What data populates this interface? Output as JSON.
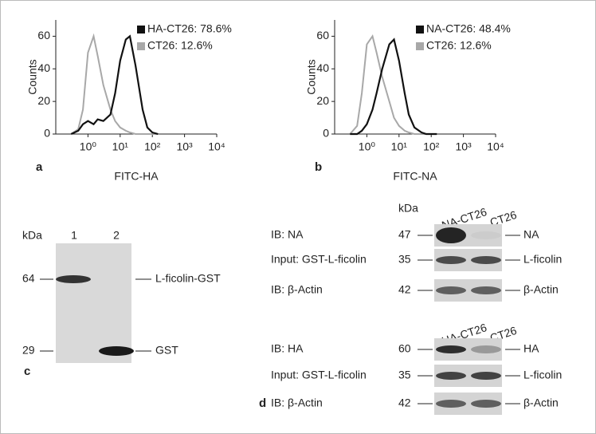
{
  "chart_data": [
    {
      "type": "line",
      "panel": "a",
      "x_label": "FITC-HA",
      "y_label": "Counts",
      "xlog": true,
      "x": [
        0.3,
        0.5,
        0.7,
        1,
        1.5,
        2,
        3,
        5,
        7,
        10,
        15,
        20,
        30,
        50,
        70,
        100,
        150
      ],
      "series": [
        {
          "name": "HA-CT26: 78.6%",
          "color": "#111111",
          "values": [
            0,
            2,
            6,
            8,
            6,
            9,
            8,
            12,
            25,
            45,
            58,
            60,
            42,
            15,
            4,
            1,
            0
          ]
        },
        {
          "name": "CT26: 12.6%",
          "color": "#a8a8a8",
          "values": [
            0,
            3,
            15,
            50,
            60,
            48,
            30,
            15,
            8,
            4,
            2,
            1,
            0,
            0,
            0,
            0,
            0
          ]
        }
      ],
      "xlim": [
        0.1,
        10000
      ],
      "xticks": [
        {
          "value": 1,
          "label": "10⁰"
        },
        {
          "value": 10,
          "label": "10¹"
        },
        {
          "value": 100,
          "label": "10²"
        },
        {
          "value": 1000,
          "label": "10³"
        },
        {
          "value": 10000,
          "label": "10⁴"
        }
      ],
      "ylim": [
        0,
        70
      ],
      "yticks": [
        0,
        20,
        40,
        60
      ],
      "legend": "upper right"
    },
    {
      "type": "line",
      "panel": "b",
      "x_label": "FITC-NA",
      "y_label": "Counts",
      "xlog": true,
      "x": [
        0.3,
        0.5,
        0.7,
        1,
        1.5,
        2,
        3,
        5,
        7,
        10,
        15,
        20,
        30,
        50,
        70,
        100,
        150
      ],
      "series": [
        {
          "name": "NA-CT26: 48.4%",
          "color": "#111111",
          "values": [
            0,
            0,
            2,
            6,
            15,
            25,
            40,
            55,
            58,
            45,
            25,
            12,
            4,
            1,
            0,
            0,
            0
          ]
        },
        {
          "name": "CT26: 12.6%",
          "color": "#a8a8a8",
          "values": [
            0,
            5,
            25,
            55,
            60,
            50,
            35,
            20,
            10,
            5,
            2,
            1,
            0,
            0,
            0,
            0,
            0
          ]
        }
      ],
      "xlim": [
        0.1,
        10000
      ],
      "xticks": [
        {
          "value": 1,
          "label": "10⁰"
        },
        {
          "value": 10,
          "label": "10¹"
        },
        {
          "value": 100,
          "label": "10²"
        },
        {
          "value": 1000,
          "label": "10³"
        },
        {
          "value": 10000,
          "label": "10⁴"
        }
      ],
      "ylim": [
        0,
        70
      ],
      "yticks": [
        0,
        20,
        40,
        60
      ],
      "legend": "upper right"
    }
  ],
  "blot_c": {
    "panel": "c",
    "kda": "kDa",
    "lanes": [
      "1",
      "2"
    ],
    "markers": [
      64,
      29
    ],
    "bands": [
      "L-ficolin-GST",
      "GST"
    ]
  },
  "blot_d": {
    "panel": "d",
    "kda": "kDa",
    "groups": [
      {
        "lanes": [
          "NA-CT26",
          "CT26"
        ],
        "rows": [
          {
            "label": "IB: NA",
            "kda": 47,
            "band": "NA"
          },
          {
            "label": "Input: GST-L-ficolin",
            "kda": 35,
            "band": "L-ficolin"
          },
          {
            "label": "IB: β-Actin",
            "kda": 42,
            "band": "β-Actin"
          }
        ]
      },
      {
        "lanes": [
          "HA-CT26",
          "CT26"
        ],
        "rows": [
          {
            "label": "IB: HA",
            "kda": 60,
            "band": "HA"
          },
          {
            "label": "Input: GST-L-ficolin",
            "kda": 35,
            "band": "L-ficolin"
          },
          {
            "label": "IB: β-Actin",
            "kda": 42,
            "band": "β-Actin"
          }
        ]
      }
    ]
  }
}
